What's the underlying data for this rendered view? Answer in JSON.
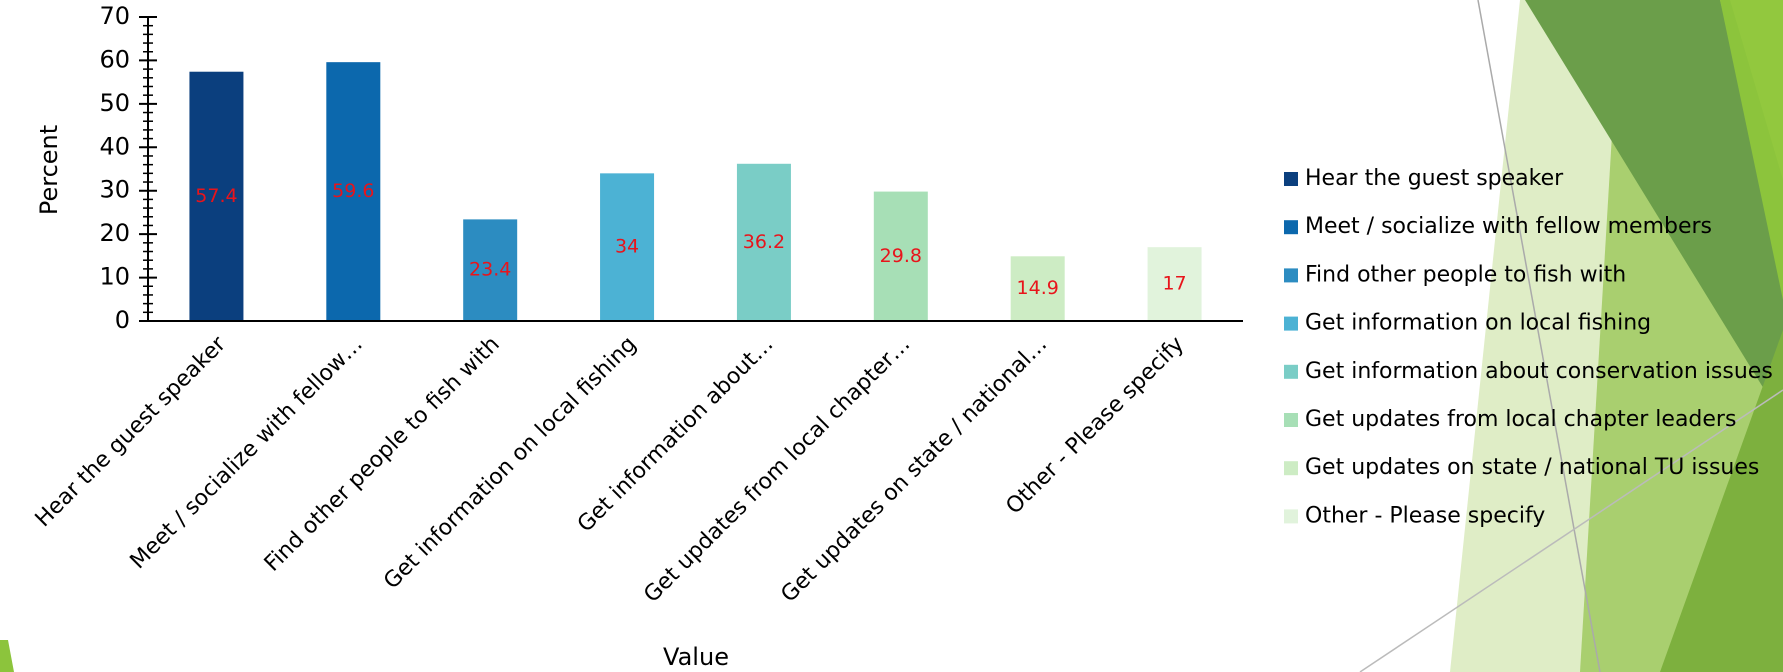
{
  "chart_data": {
    "type": "bar",
    "y_label": "Percent",
    "x_label": "Value",
    "categories": [
      "Hear the guest speaker",
      "Meet / socialize with fellow…",
      "Find other people to fish with",
      "Get information on local fishing",
      "Get information about…",
      "Get updates from local chapter…",
      "Get updates on state / national…",
      "Other - Please specify"
    ],
    "legend": [
      "Hear the guest speaker",
      "Meet / socialize with fellow members",
      "Find other people to fish with",
      "Get information on local fishing",
      "Get information about conservation issues",
      "Get updates from local chapter leaders",
      "Get updates on state / national TU issues",
      "Other - Please specify"
    ],
    "values": [
      57.4,
      59.6,
      23.4,
      34,
      36.2,
      29.8,
      14.9,
      17
    ],
    "colors": [
      "#0b3f7e",
      "#0c68ad",
      "#2c8cc1",
      "#4cb2d4",
      "#7acdc6",
      "#a7dfb6",
      "#cdecc4",
      "#e1f3dc"
    ],
    "ylim": [
      0,
      70
    ],
    "yticks": [
      0,
      10,
      20,
      30,
      40,
      50,
      60,
      70
    ],
    "minor_yticks": [
      2,
      4,
      6,
      8,
      12,
      14,
      16,
      18,
      22,
      24,
      26,
      28,
      32,
      34,
      36,
      38,
      42,
      44,
      46,
      48,
      52,
      54,
      56,
      58,
      62,
      64,
      66,
      68
    ]
  }
}
